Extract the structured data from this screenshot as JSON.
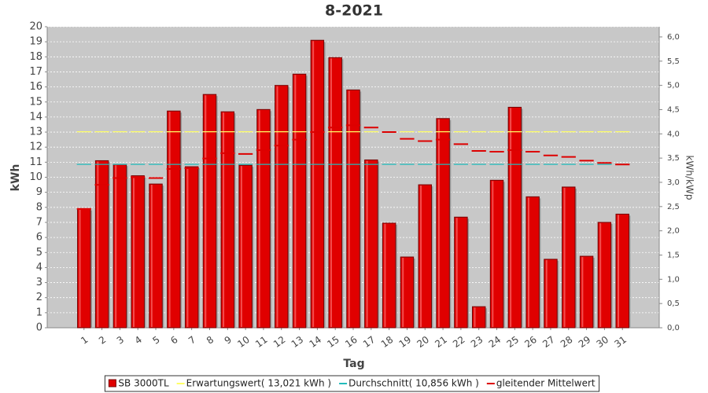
{
  "chart_data": {
    "type": "bar",
    "title": "8-2021",
    "x_label": "Tag",
    "y_label": "kWh",
    "y2_label": "kWh/kWp",
    "categories": [
      "1",
      "2",
      "3",
      "4",
      "5",
      "6",
      "7",
      "8",
      "9",
      "10",
      "11",
      "12",
      "13",
      "14",
      "15",
      "16",
      "17",
      "18",
      "19",
      "20",
      "21",
      "22",
      "23",
      "24",
      "25",
      "26",
      "27",
      "28",
      "29",
      "30",
      "31"
    ],
    "series": [
      {
        "name": "SB 3000TL",
        "color": "#e00000",
        "mark": "bar",
        "values": [
          7.9,
          11.1,
          10.85,
          10.1,
          9.55,
          14.4,
          10.7,
          15.5,
          14.35,
          10.8,
          14.5,
          16.1,
          16.85,
          19.1,
          17.95,
          15.8,
          11.15,
          6.95,
          4.7,
          9.5,
          13.9,
          7.35,
          1.4,
          9.8,
          14.65,
          8.7,
          4.55,
          9.35,
          4.75,
          7.0,
          7.55
        ]
      },
      {
        "name": "Erwartungswert( 13,021 kWh )",
        "color": "#ffff66",
        "mark": "dash",
        "values": [
          13.021,
          13.021,
          13.021,
          13.021,
          13.021,
          13.021,
          13.021,
          13.021,
          13.021,
          13.021,
          13.021,
          13.021,
          13.021,
          13.021,
          13.021,
          13.021,
          13.021,
          13.021,
          13.021,
          13.021,
          13.021,
          13.021,
          13.021,
          13.021,
          13.021,
          13.021,
          13.021,
          13.021,
          13.021,
          13.021,
          13.021
        ]
      },
      {
        "name": "Durchschnitt( 10,856 kWh )",
        "color": "#22bbbb",
        "mark": "dash",
        "values": [
          10.856,
          10.856,
          10.856,
          10.856,
          10.856,
          10.856,
          10.856,
          10.856,
          10.856,
          10.856,
          10.856,
          10.856,
          10.856,
          10.856,
          10.856,
          10.856,
          10.856,
          10.856,
          10.856,
          10.856,
          10.856,
          10.856,
          10.856,
          10.856,
          10.856,
          10.856,
          10.856,
          10.856,
          10.856,
          10.856,
          10.856
        ]
      },
      {
        "name": "gleitender Mittelwert",
        "color": "#dd0000",
        "mark": "dash",
        "values": [
          7.9,
          9.5,
          9.95,
          10.0,
          9.95,
          10.55,
          10.6,
          11.25,
          11.6,
          11.55,
          11.8,
          12.1,
          12.5,
          13.0,
          13.3,
          13.45,
          13.3,
          13.0,
          12.55,
          12.4,
          12.5,
          12.2,
          11.75,
          11.7,
          11.8,
          11.7,
          11.45,
          11.35,
          11.1,
          10.95,
          10.85
        ]
      }
    ],
    "ylim": [
      0,
      20
    ],
    "yticks": [
      0,
      1,
      2,
      3,
      4,
      5,
      6,
      7,
      8,
      9,
      10,
      11,
      12,
      13,
      14,
      15,
      16,
      17,
      18,
      19,
      20
    ],
    "y2lim": [
      0,
      6.21
    ],
    "y2ticks": [
      {
        "value": 0,
        "label": "0,0"
      },
      {
        "value": 0.5,
        "label": "0,5"
      },
      {
        "value": 1,
        "label": "1,0"
      },
      {
        "value": 1.5,
        "label": "1,5"
      },
      {
        "value": 2,
        "label": "2,0"
      },
      {
        "value": 2.5,
        "label": "2,5"
      },
      {
        "value": 3,
        "label": "3,0"
      },
      {
        "value": 3.5,
        "label": "3,5"
      },
      {
        "value": 4,
        "label": "4,0"
      },
      {
        "value": 4.5,
        "label": "4,5"
      },
      {
        "value": 5,
        "label": "5,0"
      },
      {
        "value": 5.5,
        "label": "5,5"
      },
      {
        "value": 6,
        "label": "6,0"
      }
    ],
    "grid": true,
    "legend": "bottom"
  }
}
